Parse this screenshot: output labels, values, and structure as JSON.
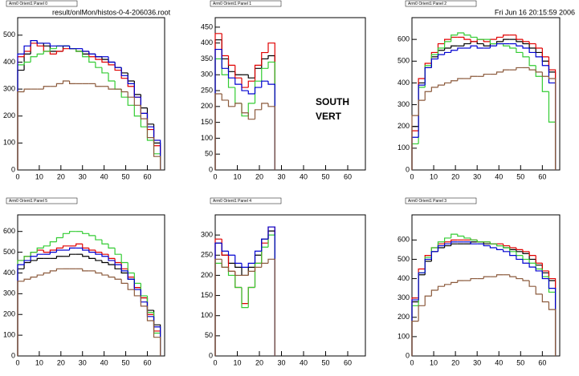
{
  "header": {
    "file": "result/onlMon/histos-0-4-206036.root",
    "date": "Fri Jun 16 20:15:59 2006"
  },
  "annotation": [
    "SOUTH",
    "VERT"
  ],
  "chart_data": [
    {
      "type": "histogram",
      "title": "Arm0 Orient1 Panel 0",
      "bins": [
        0,
        3,
        6,
        9,
        12,
        15,
        18,
        21,
        24,
        27,
        30,
        33,
        36,
        39,
        42,
        45,
        48,
        51,
        54,
        57,
        60,
        63,
        66
      ],
      "xlim": [
        0,
        68
      ],
      "ylim": [
        0,
        565
      ],
      "xticks": [
        0,
        10,
        20,
        30,
        40,
        50,
        60
      ],
      "yticks": [
        0,
        100,
        200,
        300,
        400,
        500
      ],
      "series": [
        {
          "color": "#000000",
          "values": [
            370,
            430,
            480,
            470,
            460,
            440,
            440,
            460,
            450,
            440,
            430,
            430,
            420,
            410,
            400,
            380,
            360,
            330,
            280,
            230,
            170,
            100
          ]
        },
        {
          "color": "#e00000",
          "values": [
            420,
            440,
            470,
            460,
            440,
            430,
            440,
            450,
            450,
            440,
            440,
            420,
            410,
            400,
            390,
            370,
            340,
            310,
            270,
            210,
            150,
            90
          ]
        },
        {
          "color": "#33cc33",
          "values": [
            390,
            400,
            420,
            430,
            440,
            450,
            460,
            460,
            450,
            440,
            420,
            400,
            380,
            360,
            330,
            300,
            270,
            240,
            200,
            160,
            110,
            60
          ]
        },
        {
          "color": "#0000d0",
          "values": [
            430,
            460,
            480,
            470,
            470,
            460,
            460,
            460,
            450,
            450,
            440,
            430,
            420,
            420,
            400,
            380,
            350,
            320,
            270,
            210,
            160,
            110
          ]
        },
        {
          "color": "#8b5a3c",
          "values": [
            290,
            300,
            300,
            300,
            310,
            310,
            320,
            330,
            320,
            320,
            320,
            320,
            310,
            310,
            300,
            300,
            290,
            270,
            240,
            190,
            120,
            50
          ]
        }
      ]
    },
    {
      "type": "histogram",
      "title": "Arm0 Orient1 Panel 1",
      "bins": [
        0,
        3,
        6,
        9,
        12,
        15,
        18,
        21,
        24,
        27
      ],
      "xlim": [
        0,
        68
      ],
      "ylim": [
        0,
        480
      ],
      "xticks": [
        0,
        10,
        20,
        30,
        40,
        50,
        60
      ],
      "yticks": [
        0,
        50,
        100,
        150,
        200,
        250,
        300,
        350,
        400,
        450
      ],
      "series": [
        {
          "color": "#000000",
          "values": [
            410,
            350,
            310,
            300,
            300,
            290,
            320,
            350,
            360
          ]
        },
        {
          "color": "#e00000",
          "values": [
            430,
            360,
            330,
            290,
            260,
            280,
            330,
            370,
            400
          ]
        },
        {
          "color": "#33cc33",
          "values": [
            350,
            300,
            260,
            210,
            170,
            210,
            280,
            320,
            340
          ]
        },
        {
          "color": "#0000d0",
          "values": [
            380,
            320,
            290,
            270,
            250,
            240,
            260,
            280,
            270
          ]
        },
        {
          "color": "#8b5a3c",
          "values": [
            240,
            220,
            200,
            210,
            180,
            160,
            190,
            210,
            200
          ]
        }
      ]
    },
    {
      "type": "histogram",
      "title": "Arm0 Orient1 Panel 2",
      "bins": [
        0,
        3,
        6,
        9,
        12,
        15,
        18,
        21,
        24,
        27,
        30,
        33,
        36,
        39,
        42,
        45,
        48,
        51,
        54,
        57,
        60,
        63,
        66
      ],
      "xlim": [
        0,
        68
      ],
      "ylim": [
        0,
        700
      ],
      "xticks": [
        0,
        10,
        20,
        30,
        40,
        50,
        60
      ],
      "yticks": [
        0,
        100,
        200,
        300,
        400,
        500,
        600
      ],
      "series": [
        {
          "color": "#000000",
          "values": [
            200,
            400,
            470,
            520,
            550,
            560,
            570,
            570,
            580,
            590,
            580,
            570,
            580,
            590,
            600,
            600,
            590,
            580,
            560,
            540,
            500,
            450
          ]
        },
        {
          "color": "#e00000",
          "values": [
            180,
            420,
            490,
            540,
            580,
            600,
            610,
            610,
            600,
            590,
            600,
            590,
            600,
            610,
            620,
            620,
            600,
            590,
            580,
            560,
            520,
            460
          ]
        },
        {
          "color": "#33cc33",
          "values": [
            120,
            380,
            480,
            530,
            560,
            590,
            620,
            630,
            620,
            610,
            600,
            600,
            580,
            580,
            570,
            560,
            540,
            520,
            480,
            430,
            360,
            220
          ]
        },
        {
          "color": "#0000d0",
          "values": [
            150,
            390,
            470,
            510,
            530,
            540,
            550,
            560,
            560,
            570,
            560,
            560,
            570,
            580,
            580,
            580,
            570,
            560,
            540,
            520,
            480,
            400
          ]
        },
        {
          "color": "#8b5a3c",
          "values": [
            250,
            320,
            360,
            380,
            390,
            400,
            410,
            420,
            420,
            430,
            430,
            440,
            440,
            450,
            460,
            460,
            470,
            470,
            460,
            450,
            430,
            420
          ]
        }
      ]
    },
    {
      "type": "histogram",
      "title": "Arm0 Orient1 Panel 5",
      "bins": [
        0,
        3,
        6,
        9,
        12,
        15,
        18,
        21,
        24,
        27,
        30,
        33,
        36,
        39,
        42,
        45,
        48,
        51,
        54,
        57,
        60,
        63,
        66
      ],
      "xlim": [
        0,
        68
      ],
      "ylim": [
        0,
        680
      ],
      "xticks": [
        0,
        10,
        20,
        30,
        40,
        50,
        60
      ],
      "yticks": [
        0,
        100,
        200,
        300,
        400,
        500,
        600
      ],
      "series": [
        {
          "color": "#000000",
          "values": [
            420,
            450,
            460,
            470,
            470,
            470,
            480,
            480,
            490,
            490,
            480,
            470,
            460,
            450,
            440,
            420,
            400,
            370,
            330,
            280,
            220,
            150
          ]
        },
        {
          "color": "#e00000",
          "values": [
            460,
            480,
            500,
            510,
            500,
            510,
            520,
            530,
            530,
            540,
            520,
            510,
            500,
            490,
            470,
            450,
            420,
            380,
            330,
            280,
            200,
            120
          ]
        },
        {
          "color": "#33cc33",
          "values": [
            460,
            480,
            500,
            520,
            530,
            550,
            570,
            590,
            600,
            600,
            590,
            580,
            560,
            540,
            520,
            490,
            450,
            400,
            350,
            290,
            210,
            110
          ]
        },
        {
          "color": "#0000d0",
          "values": [
            440,
            460,
            480,
            490,
            490,
            500,
            510,
            510,
            520,
            520,
            510,
            500,
            490,
            480,
            460,
            440,
            410,
            370,
            320,
            260,
            190,
            140
          ]
        },
        {
          "color": "#8b5a3c",
          "values": [
            360,
            370,
            380,
            390,
            400,
            410,
            420,
            420,
            420,
            420,
            410,
            410,
            400,
            390,
            380,
            370,
            350,
            320,
            290,
            240,
            170,
            90
          ]
        }
      ]
    },
    {
      "type": "histogram",
      "title": "Arm0 Orient1 Panel 4",
      "bins": [
        0,
        3,
        6,
        9,
        12,
        15,
        18,
        21,
        24,
        27
      ],
      "xlim": [
        0,
        68
      ],
      "ylim": [
        0,
        350
      ],
      "xticks": [
        0,
        10,
        20,
        30,
        40,
        50,
        60
      ],
      "yticks": [
        0,
        50,
        100,
        150,
        200,
        250,
        300
      ],
      "series": [
        {
          "color": "#000000",
          "values": [
            280,
            250,
            230,
            220,
            200,
            220,
            250,
            290,
            310
          ]
        },
        {
          "color": "#e00000",
          "values": [
            290,
            250,
            210,
            170,
            130,
            170,
            230,
            280,
            320
          ]
        },
        {
          "color": "#33cc33",
          "values": [
            230,
            220,
            200,
            170,
            120,
            170,
            230,
            270,
            300
          ]
        },
        {
          "color": "#0000d0",
          "values": [
            280,
            260,
            250,
            230,
            220,
            230,
            260,
            290,
            320
          ]
        },
        {
          "color": "#8b5a3c",
          "values": [
            240,
            220,
            210,
            200,
            200,
            210,
            220,
            230,
            240
          ]
        }
      ]
    },
    {
      "type": "histogram",
      "title": "Arm0 Orient1 Panel 3",
      "bins": [
        0,
        3,
        6,
        9,
        12,
        15,
        18,
        21,
        24,
        27,
        30,
        33,
        36,
        39,
        42,
        45,
        48,
        51,
        54,
        57,
        60,
        63,
        66
      ],
      "xlim": [
        0,
        68
      ],
      "ylim": [
        0,
        730
      ],
      "xticks": [
        0,
        10,
        20,
        30,
        40,
        50,
        60
      ],
      "yticks": [
        0,
        100,
        200,
        300,
        400,
        500,
        600
      ],
      "series": [
        {
          "color": "#000000",
          "values": [
            280,
            420,
            490,
            540,
            560,
            570,
            580,
            580,
            580,
            590,
            590,
            580,
            580,
            570,
            560,
            550,
            540,
            530,
            500,
            470,
            430,
            390
          ]
        },
        {
          "color": "#e00000",
          "values": [
            300,
            450,
            520,
            560,
            580,
            590,
            600,
            600,
            600,
            600,
            590,
            590,
            580,
            580,
            570,
            560,
            550,
            540,
            520,
            480,
            440,
            400
          ]
        },
        {
          "color": "#33cc33",
          "values": [
            260,
            430,
            510,
            560,
            590,
            610,
            630,
            620,
            610,
            600,
            590,
            590,
            580,
            570,
            560,
            540,
            520,
            500,
            480,
            450,
            410,
            330
          ]
        },
        {
          "color": "#0000d0",
          "values": [
            290,
            430,
            500,
            540,
            570,
            580,
            590,
            590,
            590,
            580,
            580,
            570,
            560,
            550,
            540,
            520,
            500,
            480,
            460,
            440,
            400,
            350
          ]
        },
        {
          "color": "#8b5a3c",
          "values": [
            180,
            260,
            310,
            340,
            360,
            370,
            380,
            390,
            390,
            400,
            400,
            410,
            410,
            420,
            420,
            410,
            400,
            390,
            360,
            320,
            280,
            240
          ]
        }
      ]
    }
  ]
}
